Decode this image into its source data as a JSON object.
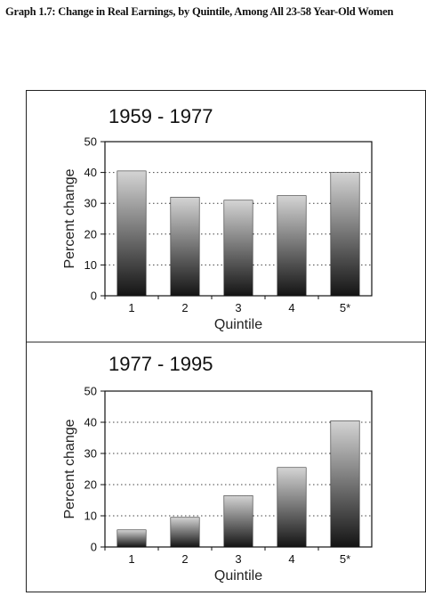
{
  "header": {
    "title": "Graph 1.7: Change in Real Earnings, by Quintile, Among All 23-58 Year-Old Women"
  },
  "colors": {
    "bar_top": "#d4d4d4",
    "bar_mid": "#6a6a6a",
    "bar_bottom": "#141414",
    "grid": "#444444",
    "axis": "#111111"
  },
  "chart_data": [
    {
      "type": "bar",
      "title": "1959 - 1977",
      "xlabel": "Quintile",
      "ylabel": "Percent change",
      "categories": [
        "1",
        "2",
        "3",
        "4",
        "5*"
      ],
      "values": [
        40.5,
        32,
        31,
        32.5,
        40
      ],
      "ylim": [
        0,
        50
      ],
      "yticks": [
        0,
        10,
        20,
        30,
        40,
        50
      ],
      "grid": true
    },
    {
      "type": "bar",
      "title": "1977 - 1995",
      "xlabel": "Quintile",
      "ylabel": "Percent change",
      "categories": [
        "1",
        "2",
        "3",
        "4",
        "5*"
      ],
      "values": [
        5.5,
        9.5,
        16.5,
        25.5,
        40.5
      ],
      "ylim": [
        0,
        50
      ],
      "yticks": [
        0,
        10,
        20,
        30,
        40,
        50
      ],
      "grid": true
    }
  ]
}
